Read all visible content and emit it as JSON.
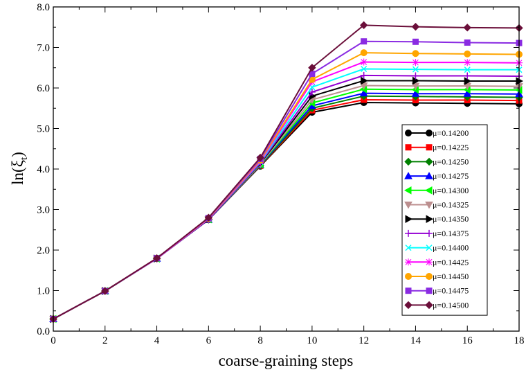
{
  "chart_data": {
    "type": "line",
    "xlabel": "coarse-graining steps",
    "ylabel_main": "ln(ξ",
    "ylabel_sub": "t",
    "ylabel_close": ")",
    "xlim": [
      0,
      18
    ],
    "ylim": [
      0.0,
      8.0
    ],
    "xticks": [
      0,
      2,
      4,
      6,
      8,
      10,
      12,
      14,
      16,
      18
    ],
    "yticks": [
      "0.0",
      "1.0",
      "2.0",
      "3.0",
      "4.0",
      "5.0",
      "6.0",
      "7.0",
      "8.0"
    ],
    "x": [
      0,
      2,
      4,
      6,
      8,
      10,
      12,
      14,
      16,
      18
    ],
    "legend_position": "right, lower-middle",
    "series": [
      {
        "name": "μ=0.14200",
        "color": "#000000",
        "marker": "circle",
        "values": [
          0.3,
          0.99,
          1.79,
          2.75,
          4.07,
          5.4,
          5.64,
          5.63,
          5.62,
          5.61
        ]
      },
      {
        "name": "μ=0.14225",
        "color": "#ff0000",
        "marker": "square",
        "values": [
          0.3,
          0.99,
          1.79,
          2.75,
          4.08,
          5.45,
          5.71,
          5.7,
          5.7,
          5.69
        ]
      },
      {
        "name": "μ=0.14250",
        "color": "#008000",
        "marker": "diamond",
        "values": [
          0.3,
          0.99,
          1.79,
          2.75,
          4.09,
          5.5,
          5.8,
          5.79,
          5.78,
          5.77
        ]
      },
      {
        "name": "μ=0.14275",
        "color": "#0000ff",
        "marker": "triangle-up",
        "values": [
          0.3,
          0.99,
          1.79,
          2.75,
          4.1,
          5.56,
          5.87,
          5.86,
          5.86,
          5.85
        ]
      },
      {
        "name": "μ=0.14300",
        "color": "#00ff00",
        "marker": "triangle-left",
        "values": [
          0.3,
          0.99,
          1.79,
          2.76,
          4.11,
          5.63,
          5.97,
          5.96,
          5.96,
          5.95
        ]
      },
      {
        "name": "μ=0.14325",
        "color": "#bc8f8f",
        "marker": "triangle-down",
        "values": [
          0.3,
          0.99,
          1.79,
          2.76,
          4.12,
          5.71,
          6.06,
          6.05,
          6.05,
          6.04
        ]
      },
      {
        "name": "μ=0.14350",
        "color": "#000000",
        "marker": "triangle-right",
        "values": [
          0.3,
          0.99,
          1.79,
          2.76,
          4.14,
          5.8,
          6.18,
          6.18,
          6.17,
          6.17
        ]
      },
      {
        "name": "μ=0.14375",
        "color": "#9400d3",
        "marker": "plus",
        "values": [
          0.3,
          0.99,
          1.79,
          2.76,
          4.15,
          5.9,
          6.31,
          6.3,
          6.3,
          6.29
        ]
      },
      {
        "name": "μ=0.14400",
        "color": "#00ffff",
        "marker": "x",
        "values": [
          0.3,
          0.99,
          1.79,
          2.77,
          4.17,
          6.02,
          6.47,
          6.46,
          6.45,
          6.45
        ]
      },
      {
        "name": "μ=0.14425",
        "color": "#ff00ff",
        "marker": "star",
        "values": [
          0.3,
          0.99,
          1.79,
          2.77,
          4.19,
          6.15,
          6.64,
          6.63,
          6.63,
          6.62
        ]
      },
      {
        "name": "μ=0.14450",
        "color": "#ffa500",
        "marker": "circle",
        "values": [
          0.3,
          0.99,
          1.8,
          2.78,
          4.22,
          6.21,
          6.87,
          6.85,
          6.84,
          6.83
        ]
      },
      {
        "name": "μ=0.14475",
        "color": "#8a2be2",
        "marker": "square",
        "values": [
          0.3,
          0.99,
          1.8,
          2.79,
          4.25,
          6.35,
          7.15,
          7.14,
          7.12,
          7.11
        ]
      },
      {
        "name": "μ=0.14500",
        "color": "#6b0f3a",
        "marker": "diamond",
        "values": [
          0.3,
          0.99,
          1.8,
          2.8,
          4.28,
          6.5,
          7.55,
          7.51,
          7.49,
          7.48
        ]
      }
    ]
  }
}
